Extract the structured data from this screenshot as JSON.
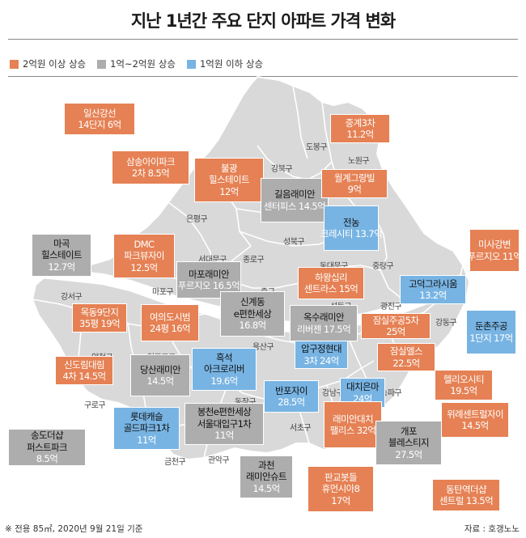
{
  "title": "지난 1년간 주요 단지 아파트 가격 변화",
  "legend": [
    {
      "label": "2억원 이상 상승",
      "color": "#e58154"
    },
    {
      "label": "1억~2억원 상승",
      "color": "#adadad"
    },
    {
      "label": "1억원 이하 상승",
      "color": "#78b4e3"
    }
  ],
  "districts": [
    "도봉구",
    "강북구",
    "노원구",
    "은평구",
    "성북구",
    "서대문구",
    "종로구",
    "동대문구",
    "중랑구",
    "마포구",
    "중구",
    "강서구",
    "성동구",
    "광진구",
    "강동구",
    "용산구",
    "양천구",
    "영등포구",
    "동작구",
    "강남구",
    "송파구",
    "구로구",
    "서초구",
    "금천구",
    "관악구"
  ],
  "complexes": [
    {
      "name": "일산강선",
      "detail": "14단지",
      "price": "6억",
      "cat": "orange"
    },
    {
      "name": "삼송아이파크",
      "detail": "2차",
      "price": "8.5억",
      "cat": "orange"
    },
    {
      "name": "불광",
      "detail": "힐스테이트",
      "price": "12억",
      "cat": "orange"
    },
    {
      "name": "길음래미안",
      "detail": "센터피스",
      "price": "14.5억",
      "cat": "gray"
    },
    {
      "name": "중계3차",
      "detail": "",
      "price": "11.2억",
      "cat": "orange"
    },
    {
      "name": "월계그랑빌",
      "detail": "",
      "price": "9억",
      "cat": "orange"
    },
    {
      "name": "전농",
      "detail": "크레시티",
      "price": "13.7억",
      "cat": "blue"
    },
    {
      "name": "마곡",
      "detail": "힐스테이트",
      "price": "12.7억",
      "cat": "gray"
    },
    {
      "name": "DMC",
      "detail": "파크뷰자이",
      "price": "12.5억",
      "cat": "orange"
    },
    {
      "name": "마포래미안",
      "detail": "푸르지오",
      "price": "16.5억",
      "cat": "gray"
    },
    {
      "name": "하왕십리",
      "detail": "센트라스",
      "price": "15억",
      "cat": "orange"
    },
    {
      "name": "미사강변",
      "detail": "푸르지오",
      "price": "11억",
      "cat": "orange"
    },
    {
      "name": "고덕그라시움",
      "detail": "",
      "price": "13.2억",
      "cat": "blue"
    },
    {
      "name": "목동9단지",
      "detail": "35평",
      "price": "19억",
      "cat": "orange"
    },
    {
      "name": "여의도시범",
      "detail": "24평",
      "price": "16억",
      "cat": "orange"
    },
    {
      "name": "신계동",
      "detail": "e편한세상",
      "price": "16.8억",
      "cat": "gray"
    },
    {
      "name": "옥수래미안",
      "detail": "리버젠",
      "price": "17.5억",
      "cat": "gray"
    },
    {
      "name": "잠실주공5차",
      "detail": "",
      "price": "25억",
      "cat": "orange"
    },
    {
      "name": "둔촌주공",
      "detail": "1단지",
      "price": "17억",
      "cat": "blue"
    },
    {
      "name": "신도림대림",
      "detail": "4차",
      "price": "14.5억",
      "cat": "orange"
    },
    {
      "name": "당산래미안",
      "detail": "",
      "price": "14.5억",
      "cat": "gray"
    },
    {
      "name": "흑석",
      "detail": "아크로리버",
      "price": "19.6억",
      "cat": "blue"
    },
    {
      "name": "압구정현대",
      "detail": "3차",
      "price": "24억",
      "cat": "blue"
    },
    {
      "name": "잠실엘스",
      "detail": "",
      "price": "22.5억",
      "cat": "orange"
    },
    {
      "name": "헬리오시티",
      "detail": "",
      "price": "19.5억",
      "cat": "orange"
    },
    {
      "name": "반포자이",
      "detail": "",
      "price": "28.5억",
      "cat": "blue"
    },
    {
      "name": "대치은마",
      "detail": "",
      "price": "24억",
      "cat": "blue"
    },
    {
      "name": "위례센트럴자이",
      "detail": "",
      "price": "14.5억",
      "cat": "orange"
    },
    {
      "name": "송도더샵",
      "detail": "퍼스트파크",
      "price": "8.5억",
      "cat": "gray"
    },
    {
      "name": "롯데캐슬",
      "detail": "골드파크1차",
      "price": "11억",
      "cat": "blue"
    },
    {
      "name": "봉천e편한세상",
      "detail": "서울대입구1차",
      "price": "11억",
      "cat": "gray"
    },
    {
      "name": "래미안대치",
      "detail": "팰리스",
      "price": "32억",
      "cat": "orange"
    },
    {
      "name": "개포",
      "detail": "블레스티지",
      "price": "27.5억",
      "cat": "gray"
    },
    {
      "name": "과천",
      "detail": "래미안슈트",
      "price": "14.5억",
      "cat": "gray"
    },
    {
      "name": "판교봇들",
      "detail": "휴먼시아8",
      "price": "17억",
      "cat": "orange"
    },
    {
      "name": "동탄역더샵",
      "detail": "센트럴",
      "price": "13.5억",
      "cat": "orange"
    }
  ],
  "footnote": "※ 전용 85㎡, 2020년 9월 21일 기준",
  "source": "자료 : 호갱노노"
}
